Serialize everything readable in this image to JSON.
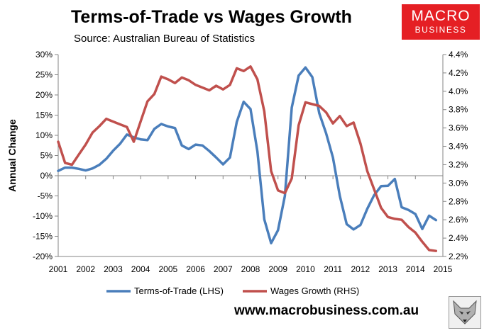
{
  "header": {
    "title": "Terms-of-Trade vs Wages Growth",
    "subtitle": "Source: Australian Bureau of Statistics"
  },
  "logo": {
    "line1": "MACRO",
    "line2": "BUSINESS",
    "bg_color": "#e51f24"
  },
  "footer": {
    "website": "www.macrobusiness.com.au",
    "emblem_icon": "fox-icon"
  },
  "chart_data": {
    "type": "line",
    "ylabel": "Annual Change",
    "x_ticks": [
      2001,
      2002,
      2003,
      2004,
      2005,
      2006,
      2007,
      2008,
      2009,
      2010,
      2011,
      2012,
      2013,
      2014,
      2015
    ],
    "x_tick_labels": [
      "2001",
      "2002",
      "2003",
      "2004",
      "2005",
      "2006",
      "2007",
      "2008",
      "2009",
      "2010",
      "2011",
      "2012",
      "2013",
      "2014",
      "2015"
    ],
    "xlim": [
      2001,
      2015
    ],
    "y_left": {
      "lim": [
        -20,
        30
      ],
      "ticks": [
        -20,
        -15,
        -10,
        -5,
        0,
        5,
        10,
        15,
        20,
        25,
        30
      ],
      "tick_labels": [
        "-20%",
        "-15%",
        "-10%",
        "-5%",
        "0%",
        "5%",
        "10%",
        "15%",
        "20%",
        "25%",
        "30%"
      ]
    },
    "y_right": {
      "lim": [
        2.2,
        4.4
      ],
      "ticks": [
        2.2,
        2.4,
        2.6,
        2.8,
        3.0,
        3.2,
        3.4,
        3.6,
        3.8,
        4.0,
        4.2,
        4.4
      ],
      "tick_labels": [
        "2.2%",
        "2.4%",
        "2.6%",
        "2.8%",
        "3.0%",
        "3.2%",
        "3.4%",
        "3.6%",
        "3.8%",
        "4.0%",
        "4.2%",
        "4.4%"
      ]
    },
    "grid": false,
    "legend_position": "bottom",
    "series": [
      {
        "name": "Terms-of-Trade (LHS)",
        "axis": "left",
        "color": "#4a7ebb",
        "x": [
          2001.0,
          2001.25,
          2001.5,
          2001.75,
          2002.0,
          2002.25,
          2002.5,
          2002.75,
          2003.0,
          2003.25,
          2003.5,
          2003.75,
          2004.0,
          2004.25,
          2004.5,
          2004.75,
          2005.0,
          2005.25,
          2005.5,
          2005.75,
          2006.0,
          2006.25,
          2006.5,
          2006.75,
          2007.0,
          2007.25,
          2007.5,
          2007.75,
          2008.0,
          2008.25,
          2008.5,
          2008.75,
          2009.0,
          2009.25,
          2009.5,
          2009.75,
          2010.0,
          2010.25,
          2010.5,
          2010.75,
          2011.0,
          2011.25,
          2011.5,
          2011.75,
          2012.0,
          2012.25,
          2012.5,
          2012.75,
          2013.0,
          2013.25,
          2013.5,
          2013.75,
          2014.0,
          2014.25,
          2014.5,
          2014.75
        ],
        "values": [
          1.2,
          2.0,
          2.0,
          1.7,
          1.3,
          1.8,
          2.7,
          4.2,
          6.2,
          7.9,
          10.2,
          9.5,
          9.0,
          8.8,
          11.6,
          12.8,
          12.2,
          11.8,
          7.5,
          6.6,
          7.7,
          7.5,
          6.1,
          4.5,
          2.8,
          4.5,
          13.3,
          18.3,
          16.5,
          6.0,
          -10.8,
          -16.7,
          -13.5,
          -5.0,
          16.9,
          24.8,
          26.8,
          24.4,
          15.5,
          10.5,
          4.5,
          -5.0,
          -12.0,
          -13.3,
          -12.2,
          -8.2,
          -4.8,
          -2.6,
          -2.5,
          -0.8,
          -7.8,
          -8.5,
          -9.5,
          -13.2,
          -9.9,
          -11.0
        ]
      },
      {
        "name": "Wages Growth (RHS)",
        "axis": "right",
        "color": "#c0504d",
        "x": [
          2001.0,
          2001.25,
          2001.5,
          2001.75,
          2002.0,
          2002.25,
          2002.5,
          2002.75,
          2003.0,
          2003.25,
          2003.5,
          2003.75,
          2004.0,
          2004.25,
          2004.5,
          2004.75,
          2005.0,
          2005.25,
          2005.5,
          2005.75,
          2006.0,
          2006.25,
          2006.5,
          2006.75,
          2007.0,
          2007.25,
          2007.5,
          2007.75,
          2008.0,
          2008.25,
          2008.5,
          2008.75,
          2009.0,
          2009.25,
          2009.5,
          2009.75,
          2010.0,
          2010.25,
          2010.5,
          2010.75,
          2011.0,
          2011.25,
          2011.5,
          2011.75,
          2012.0,
          2012.25,
          2012.5,
          2012.75,
          2013.0,
          2013.25,
          2013.5,
          2013.75,
          2014.0,
          2014.25,
          2014.5,
          2014.75
        ],
        "values": [
          3.45,
          3.22,
          3.2,
          3.31,
          3.42,
          3.55,
          3.62,
          3.7,
          3.67,
          3.64,
          3.61,
          3.45,
          3.67,
          3.89,
          3.97,
          4.16,
          4.13,
          4.09,
          4.15,
          4.12,
          4.07,
          4.04,
          4.01,
          4.06,
          4.02,
          4.07,
          4.25,
          4.22,
          4.27,
          4.13,
          3.78,
          3.13,
          2.92,
          2.89,
          3.05,
          3.63,
          3.88,
          3.86,
          3.84,
          3.77,
          3.65,
          3.73,
          3.62,
          3.66,
          3.43,
          3.13,
          2.93,
          2.73,
          2.63,
          2.61,
          2.6,
          2.52,
          2.46,
          2.36,
          2.27,
          2.26
        ]
      }
    ]
  }
}
